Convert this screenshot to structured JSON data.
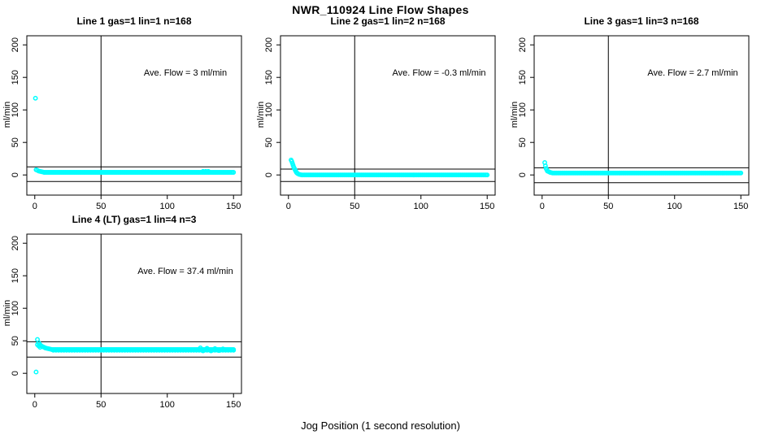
{
  "figure": {
    "title": "NWR_110924  Line Flow Shapes",
    "xlabel": "Jog Position (1 second resolution)",
    "background_color": "#ffffff",
    "point_color": "#00ffff",
    "line_color": "#000000",
    "text_color": "#000000"
  },
  "chart_data": [
    {
      "type": "scatter",
      "title": "Line 1 gas=1 lin=1 n=168",
      "ylabel": "ml/min",
      "annotation": "Ave. Flow =  3  ml/min",
      "ave_flow_ml_min": 3,
      "n_points": 168,
      "x_ticks": [
        0,
        50,
        100,
        150
      ],
      "y_ticks": [
        0,
        50,
        100,
        150,
        200
      ],
      "xlim": [
        -6,
        156
      ],
      "ylim": [
        -31,
        214
      ],
      "vline_x": 50,
      "ref_hlines": [
        12.5,
        -10
      ],
      "transient_points": [
        [
          0.5,
          118
        ],
        [
          1,
          8
        ],
        [
          2,
          7
        ],
        [
          3,
          6
        ],
        [
          4,
          5.5
        ],
        [
          5,
          5
        ],
        [
          6,
          4.5
        ],
        [
          127,
          5.5
        ],
        [
          129,
          5.5
        ],
        [
          131,
          5.5
        ]
      ],
      "steady_segments": [
        {
          "from": 7,
          "to": 150,
          "step": 1,
          "y": 4
        }
      ]
    },
    {
      "type": "scatter",
      "title": "Line 2 gas=1 lin=2 n=168",
      "ylabel": "ml/min",
      "annotation": "Ave. Flow =  -0.3  ml/min",
      "ave_flow_ml_min": -0.3,
      "n_points": 168,
      "x_ticks": [
        0,
        50,
        100,
        150
      ],
      "y_ticks": [
        0,
        50,
        100,
        150,
        200
      ],
      "xlim": [
        -6,
        156
      ],
      "ylim": [
        -31,
        214
      ],
      "vline_x": 50,
      "ref_hlines": [
        9,
        -10
      ],
      "transient_points": [
        [
          2,
          23
        ],
        [
          2.5,
          21
        ],
        [
          3,
          18
        ],
        [
          3.5,
          15
        ],
        [
          4,
          12
        ],
        [
          4.5,
          10
        ],
        [
          5,
          8
        ],
        [
          5.5,
          6
        ],
        [
          6,
          4
        ],
        [
          6.5,
          3
        ],
        [
          7,
          2
        ],
        [
          8,
          1
        ],
        [
          9,
          0.5
        ]
      ],
      "steady_segments": [
        {
          "from": 10,
          "to": 150,
          "step": 1,
          "y": 0
        }
      ]
    },
    {
      "type": "scatter",
      "title": "Line 3 gas=1 lin=3 n=168",
      "ylabel": "ml/min",
      "annotation": "Ave. Flow =  2.7  ml/min",
      "ave_flow_ml_min": 2.7,
      "n_points": 168,
      "x_ticks": [
        0,
        50,
        100,
        150
      ],
      "y_ticks": [
        0,
        50,
        100,
        150,
        200
      ],
      "xlim": [
        -6,
        156
      ],
      "ylim": [
        -31,
        214
      ],
      "vline_x": 50,
      "ref_hlines": [
        11,
        -12
      ],
      "transient_points": [
        [
          2,
          19
        ],
        [
          2.5,
          14
        ],
        [
          3,
          10
        ],
        [
          3.5,
          8
        ],
        [
          4,
          6
        ],
        [
          5,
          5
        ],
        [
          6,
          4
        ],
        [
          7,
          3.5
        ]
      ],
      "steady_segments": [
        {
          "from": 8,
          "to": 150,
          "step": 1,
          "y": 3
        }
      ]
    },
    {
      "type": "scatter",
      "title": "Line 4 (LT) gas=1 lin=4 n=3",
      "ylabel": "ml/min",
      "annotation": "Ave. Flow =  37.4  ml/min",
      "ave_flow_ml_min": 37.4,
      "n_points": 3,
      "x_ticks": [
        0,
        50,
        100,
        150
      ],
      "y_ticks": [
        0,
        50,
        100,
        150,
        200
      ],
      "xlim": [
        -6,
        156
      ],
      "ylim": [
        -31,
        214
      ],
      "vline_x": 50,
      "ref_hlines": [
        48.5,
        25
      ],
      "transient_points": [
        [
          1,
          2
        ],
        [
          2,
          52
        ],
        [
          2,
          44
        ],
        [
          3,
          47
        ],
        [
          3,
          42
        ],
        [
          4,
          44
        ],
        [
          4,
          40
        ],
        [
          5,
          42
        ],
        [
          6,
          41
        ],
        [
          7,
          40
        ],
        [
          8,
          39
        ],
        [
          9,
          38.5
        ],
        [
          10,
          38
        ],
        [
          11,
          37.5
        ],
        [
          12,
          37
        ],
        [
          125,
          39
        ],
        [
          127,
          34.5
        ],
        [
          130,
          38.5
        ],
        [
          133,
          34.5
        ],
        [
          136,
          38
        ],
        [
          139,
          35
        ],
        [
          142,
          37.5
        ]
      ],
      "steady_segments": [
        {
          "from": 13,
          "to": 150,
          "step": 1,
          "y": 36.5
        },
        {
          "from": 14,
          "to": 150,
          "step": 2,
          "y": 35.5
        }
      ]
    }
  ]
}
